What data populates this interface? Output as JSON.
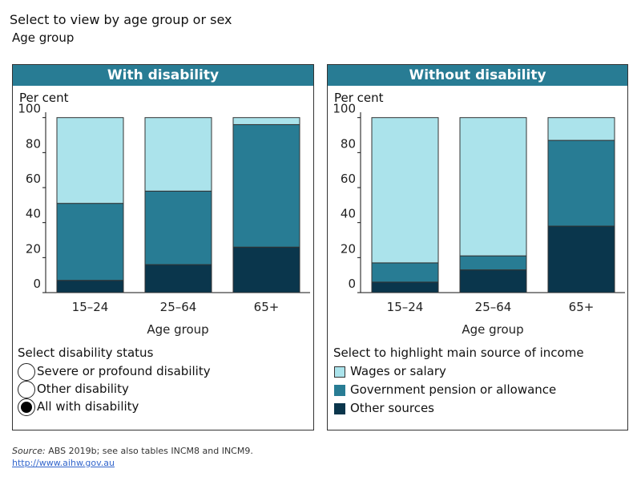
{
  "header": {
    "title": "Select to view by age group or sex",
    "selected": "Age group"
  },
  "colors": {
    "wages": "#abe3eb",
    "govt": "#287c94",
    "other": "#0a364c",
    "title_bar": "#287c94"
  },
  "chart_data": [
    {
      "type": "bar",
      "stacked": true,
      "title": "With disability",
      "ylabel": "Per cent",
      "xlabel": "Age group",
      "ylim": [
        0,
        100
      ],
      "yticks": [
        "0",
        "20",
        "40",
        "60",
        "80",
        "100"
      ],
      "categories": [
        "15–24",
        "25–64",
        "65+"
      ],
      "series": [
        {
          "name": "Other sources",
          "values": [
            7,
            16,
            26
          ]
        },
        {
          "name": "Government pension or allowance",
          "values": [
            44,
            42,
            70
          ]
        },
        {
          "name": "Wages or salary",
          "values": [
            49,
            42,
            4
          ]
        }
      ]
    },
    {
      "type": "bar",
      "stacked": true,
      "title": "Without disability",
      "ylabel": "Per cent",
      "xlabel": "Age group",
      "ylim": [
        0,
        100
      ],
      "yticks": [
        "0",
        "20",
        "40",
        "60",
        "80",
        "100"
      ],
      "categories": [
        "15–24",
        "25–64",
        "65+"
      ],
      "series": [
        {
          "name": "Other sources",
          "values": [
            6,
            13,
            38
          ]
        },
        {
          "name": "Government pension or allowance",
          "values": [
            11,
            8,
            49
          ]
        },
        {
          "name": "Wages or salary",
          "values": [
            83,
            79,
            13
          ]
        }
      ]
    }
  ],
  "disability_filter": {
    "title": "Select disability status",
    "options": [
      {
        "label": "Severe or profound disability",
        "selected": false
      },
      {
        "label": "Other disability",
        "selected": false
      },
      {
        "label": "All with disability",
        "selected": true
      }
    ]
  },
  "legend": {
    "title": "Select to highlight main source of income",
    "items": [
      "Wages or salary",
      "Government pension or allowance",
      "Other sources"
    ]
  },
  "footer": {
    "source_label": "Source:",
    "source_text": " ABS 2019b; see also tables INCM8 and INCM9.",
    "link": "http://www.aihw.gov.au"
  }
}
